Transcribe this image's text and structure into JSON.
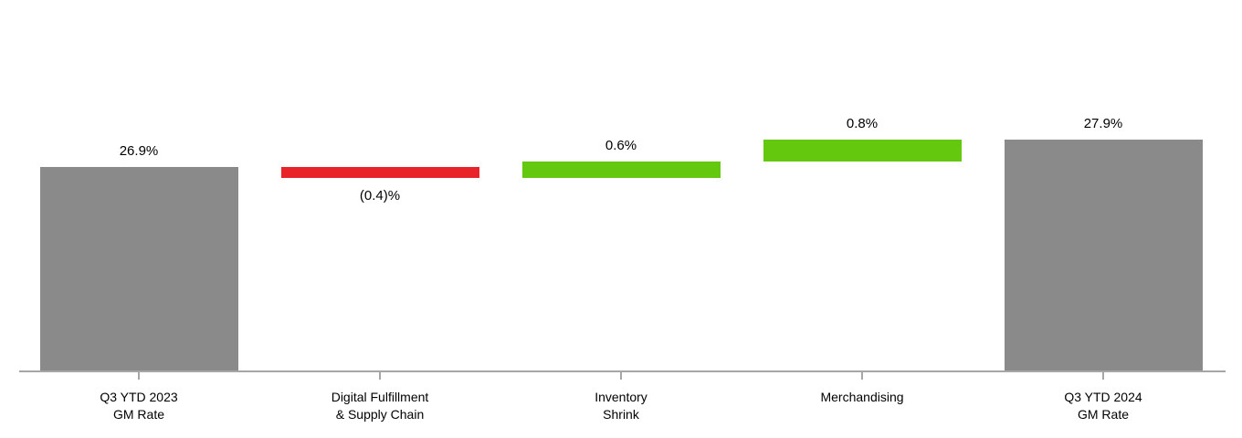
{
  "chart": {
    "background_color": "#FFFFFF",
    "axis_color": "#A6A6A6",
    "text_color": "#000000",
    "total_bar_color": "#8A8A8A",
    "decrease_bar_color": "#E8232A",
    "increase_bar_color": "#64C80F"
  },
  "chart_data": {
    "type": "bar",
    "subtype": "waterfall",
    "title": "",
    "xlabel": "",
    "ylabel": "",
    "grid": false,
    "legend": false,
    "y_axis_visible": false,
    "ylim": [
      19.47,
      28.6
    ],
    "categories": [
      "Q3 YTD 2023 GM Rate",
      "Digital Fulfillment & Supply Chain",
      "Inventory Shrink",
      "Merchandising",
      "Q3 YTD 2024 GM Rate"
    ],
    "bars": [
      {
        "category_lines": [
          "Q3 YTD 2023",
          "GM Rate"
        ],
        "value": 26.9,
        "label": "26.9%",
        "role": "total",
        "color": "#8A8A8A",
        "label_position": "above"
      },
      {
        "category_lines": [
          "Digital Fulfillment",
          "& Supply Chain"
        ],
        "value": -0.4,
        "label": "(0.4)%",
        "role": "delta",
        "color": "#E8232A",
        "label_position": "below"
      },
      {
        "category_lines": [
          "Inventory",
          "Shrink"
        ],
        "value": 0.6,
        "label": "0.6%",
        "role": "delta",
        "color": "#64C80F",
        "label_position": "above"
      },
      {
        "category_lines": [
          "Merchandising"
        ],
        "value": 0.8,
        "label": "0.8%",
        "role": "delta",
        "color": "#64C80F",
        "label_position": "above"
      },
      {
        "category_lines": [
          "Q3 YTD 2024",
          "GM Rate"
        ],
        "value": 27.9,
        "label": "27.9%",
        "role": "total",
        "color": "#8A8A8A",
        "label_position": "above"
      }
    ]
  }
}
